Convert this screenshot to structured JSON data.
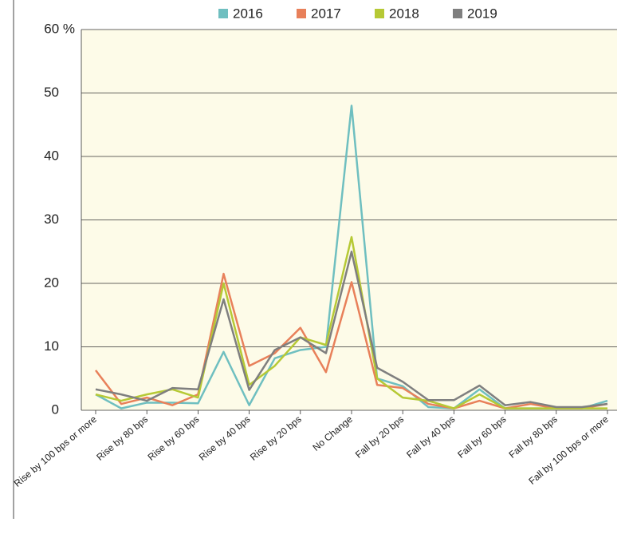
{
  "chart_data": {
    "type": "line",
    "categories": [
      "Rise by 100 bps or more",
      null,
      "Rise by 80 bps",
      null,
      "Rise by 60 bps",
      null,
      "Rise by 40 bps",
      null,
      "Rise by 20 bps",
      null,
      "No Change",
      null,
      "Fall by 20 bps",
      null,
      "Fall by 40 bps",
      null,
      "Fall by 60 bps",
      null,
      "Fall by 80 bps",
      null,
      "Fall by 100 bps or more"
    ],
    "series": [
      {
        "name": "2016",
        "color": "#6fbfc0",
        "values": [
          2.5,
          0.3,
          1.2,
          1.2,
          1.1,
          9.2,
          0.8,
          8.2,
          9.5,
          10,
          48,
          5,
          3.8,
          0.5,
          0.3,
          3.3,
          0.3,
          0.3,
          0.3,
          0.3,
          1.5
        ]
      },
      {
        "name": "2017",
        "color": "#e8805a",
        "values": [
          6.3,
          1,
          2,
          0.8,
          2.5,
          21.5,
          7,
          9,
          13,
          6,
          20.2,
          4,
          3.5,
          1,
          0.3,
          1.5,
          0.3,
          1,
          0.3,
          0.3,
          1
        ]
      },
      {
        "name": "2018",
        "color": "#b6c935",
        "values": [
          2.5,
          1.5,
          2.5,
          3.3,
          2,
          20,
          4,
          7,
          11.5,
          10.3,
          27.3,
          5,
          2,
          1.5,
          0.3,
          2.5,
          0.3,
          0.3,
          0.3,
          0.3,
          0.3
        ]
      },
      {
        "name": "2019",
        "color": "#7f7f7f",
        "values": [
          3.3,
          2.5,
          1.5,
          3.5,
          3.3,
          17.5,
          3.2,
          9.5,
          11.5,
          9,
          25,
          6.7,
          4.5,
          1.6,
          1.6,
          3.9,
          0.8,
          1.3,
          0.5,
          0.5,
          1
        ]
      }
    ],
    "ylim": [
      0,
      60
    ],
    "yticks": [
      0,
      10,
      20,
      30,
      40,
      50,
      {
        "value": 60,
        "label": "60 %"
      }
    ],
    "grid": true,
    "legend": "top"
  }
}
